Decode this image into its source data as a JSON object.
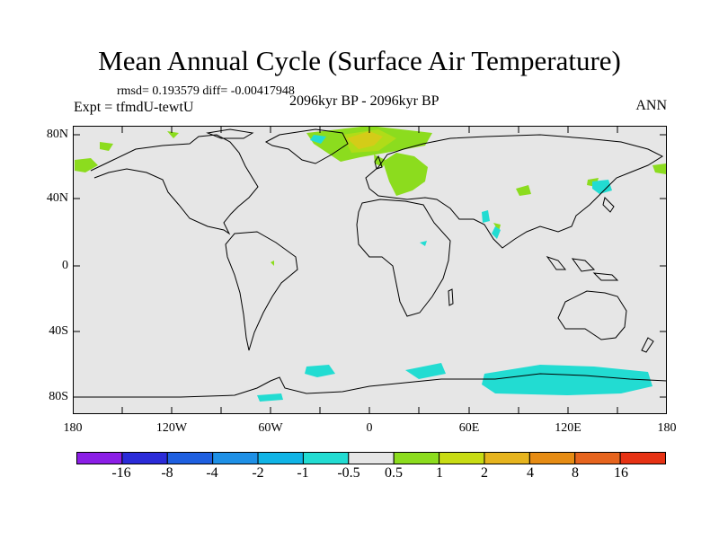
{
  "title": "Mean Annual Cycle (Surface Air Temperature)",
  "stats": "rmsd= 0.193579 diff= -0.00417948",
  "experiment": "Expt = tfmdU-tewtU",
  "period": "2096kyr BP - 2096kyr BP",
  "season": "ANN",
  "lat_labels": [
    "80N",
    "40N",
    "0",
    "40S",
    "80S"
  ],
  "lon_labels": [
    "180",
    "120W",
    "60W",
    "0",
    "60E",
    "120E",
    "180"
  ],
  "colorbar": {
    "labels": [
      "-16",
      "-8",
      "-4",
      "-2",
      "-1",
      "-0.5",
      "0.5",
      "1",
      "2",
      "4",
      "8",
      "16"
    ],
    "colors": [
      "#8b1ee6",
      "#2b2bd8",
      "#1e5fe0",
      "#1e90e6",
      "#10b4e6",
      "#22dcd2",
      "#e6e6e6",
      "#8cdc1e",
      "#c8dc14",
      "#e6b41e",
      "#e68c14",
      "#e6641e",
      "#e63214"
    ]
  },
  "colors": {
    "background": "#e6e6e6",
    "coast": "#000000"
  }
}
